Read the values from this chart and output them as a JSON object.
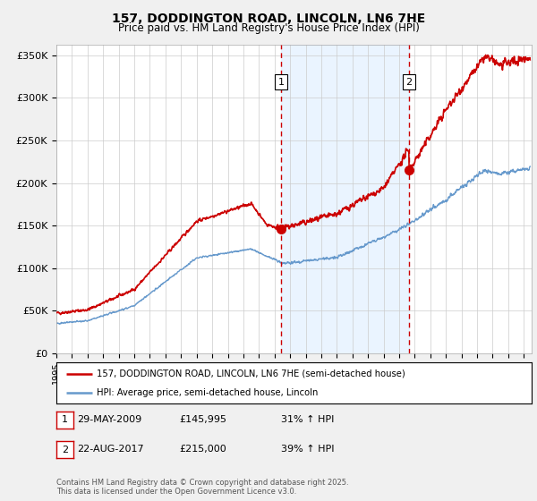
{
  "title": "157, DODDINGTON ROAD, LINCOLN, LN6 7HE",
  "subtitle": "Price paid vs. HM Land Registry's House Price Index (HPI)",
  "ylabel_ticks": [
    "£0",
    "£50K",
    "£100K",
    "£150K",
    "£200K",
    "£250K",
    "£300K",
    "£350K"
  ],
  "ytick_vals": [
    0,
    50000,
    100000,
    150000,
    200000,
    250000,
    300000,
    350000
  ],
  "ylim": [
    0,
    362000
  ],
  "xlim_start": 1995.0,
  "xlim_end": 2025.5,
  "red_color": "#cc0000",
  "blue_color": "#6699cc",
  "blue_fill_color": "#ddeeff",
  "marker1_x": 2009.42,
  "marker1_y": 145995,
  "marker2_x": 2017.64,
  "marker2_y": 215000,
  "legend_line1": "157, DODDINGTON ROAD, LINCOLN, LN6 7HE (semi-detached house)",
  "legend_line2": "HPI: Average price, semi-detached house, Lincoln",
  "copyright": "Contains HM Land Registry data © Crown copyright and database right 2025.\nThis data is licensed under the Open Government Licence v3.0.",
  "background_color": "#f0f0f0",
  "plot_bg_color": "#ffffff"
}
